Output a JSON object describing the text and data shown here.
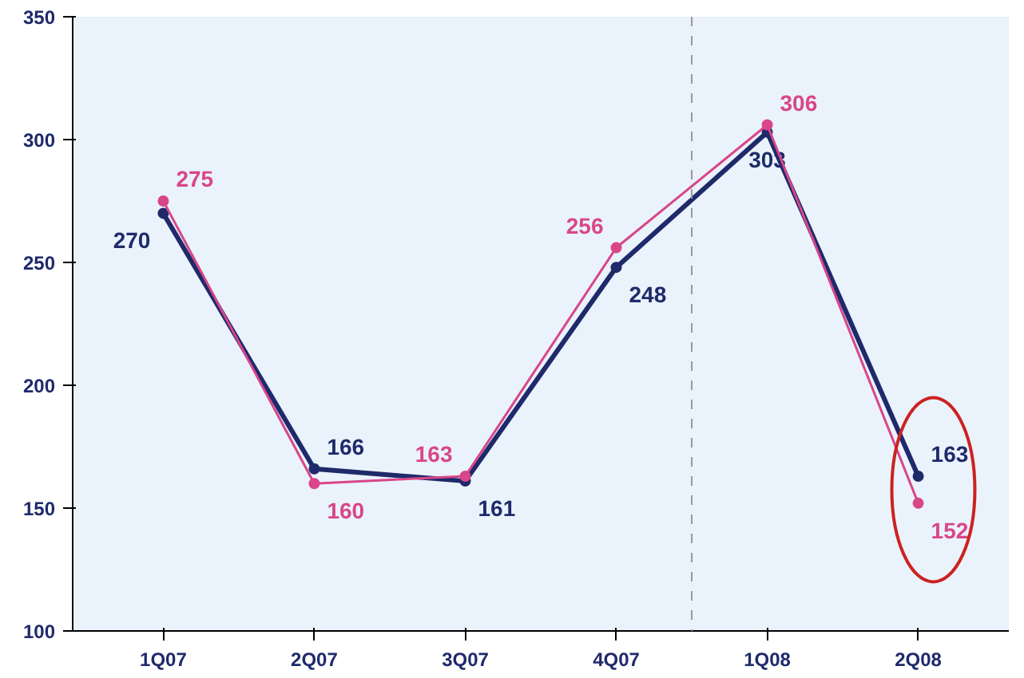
{
  "chart_data": {
    "type": "line",
    "categories": [
      "1Q07",
      "2Q07",
      "3Q07",
      "4Q07",
      "1Q08",
      "2Q08"
    ],
    "series": [
      {
        "color": "#1f2a6b",
        "values": [
          270,
          166,
          161,
          248,
          303,
          163
        ]
      },
      {
        "color": "#d9468a",
        "values": [
          275,
          160,
          163,
          256,
          306,
          152
        ]
      }
    ],
    "ylim": [
      100,
      350
    ],
    "yticks": [
      100,
      150,
      200,
      250,
      300,
      350
    ],
    "data_labels": true,
    "marker": "circle",
    "grid": false
  }
}
